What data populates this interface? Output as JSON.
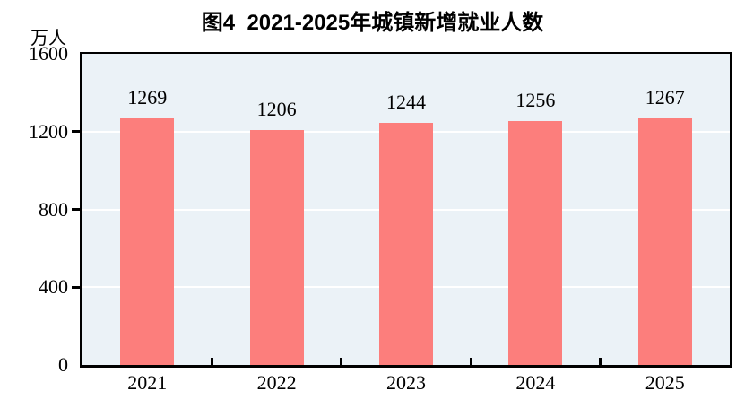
{
  "page": {
    "background_color": "#ffffff"
  },
  "chart_data": {
    "type": "bar",
    "title": "图4  2021-2025年城镇新增就业人数",
    "ylabel": "万人",
    "categories": [
      "2021",
      "2022",
      "2023",
      "2024",
      "2025"
    ],
    "values": [
      1269,
      1206,
      1244,
      1256,
      1267
    ],
    "value_labels": [
      "1269",
      "1206",
      "1244",
      "1256",
      "1267"
    ],
    "ylim": [
      0,
      1600
    ],
    "yticks": [
      0,
      400,
      800,
      1200,
      1600
    ],
    "ytick_labels": [
      "0",
      "400",
      "800",
      "1200",
      "1600"
    ],
    "grid": "horizontal white gridlines at interior yticks",
    "legend": "none",
    "bar_color": "#fc7e7c",
    "plot_bg_color": "#ebf2f7",
    "gridline_color": "#ffffff",
    "axis_color": "#000000",
    "text_color": "#000000"
  }
}
